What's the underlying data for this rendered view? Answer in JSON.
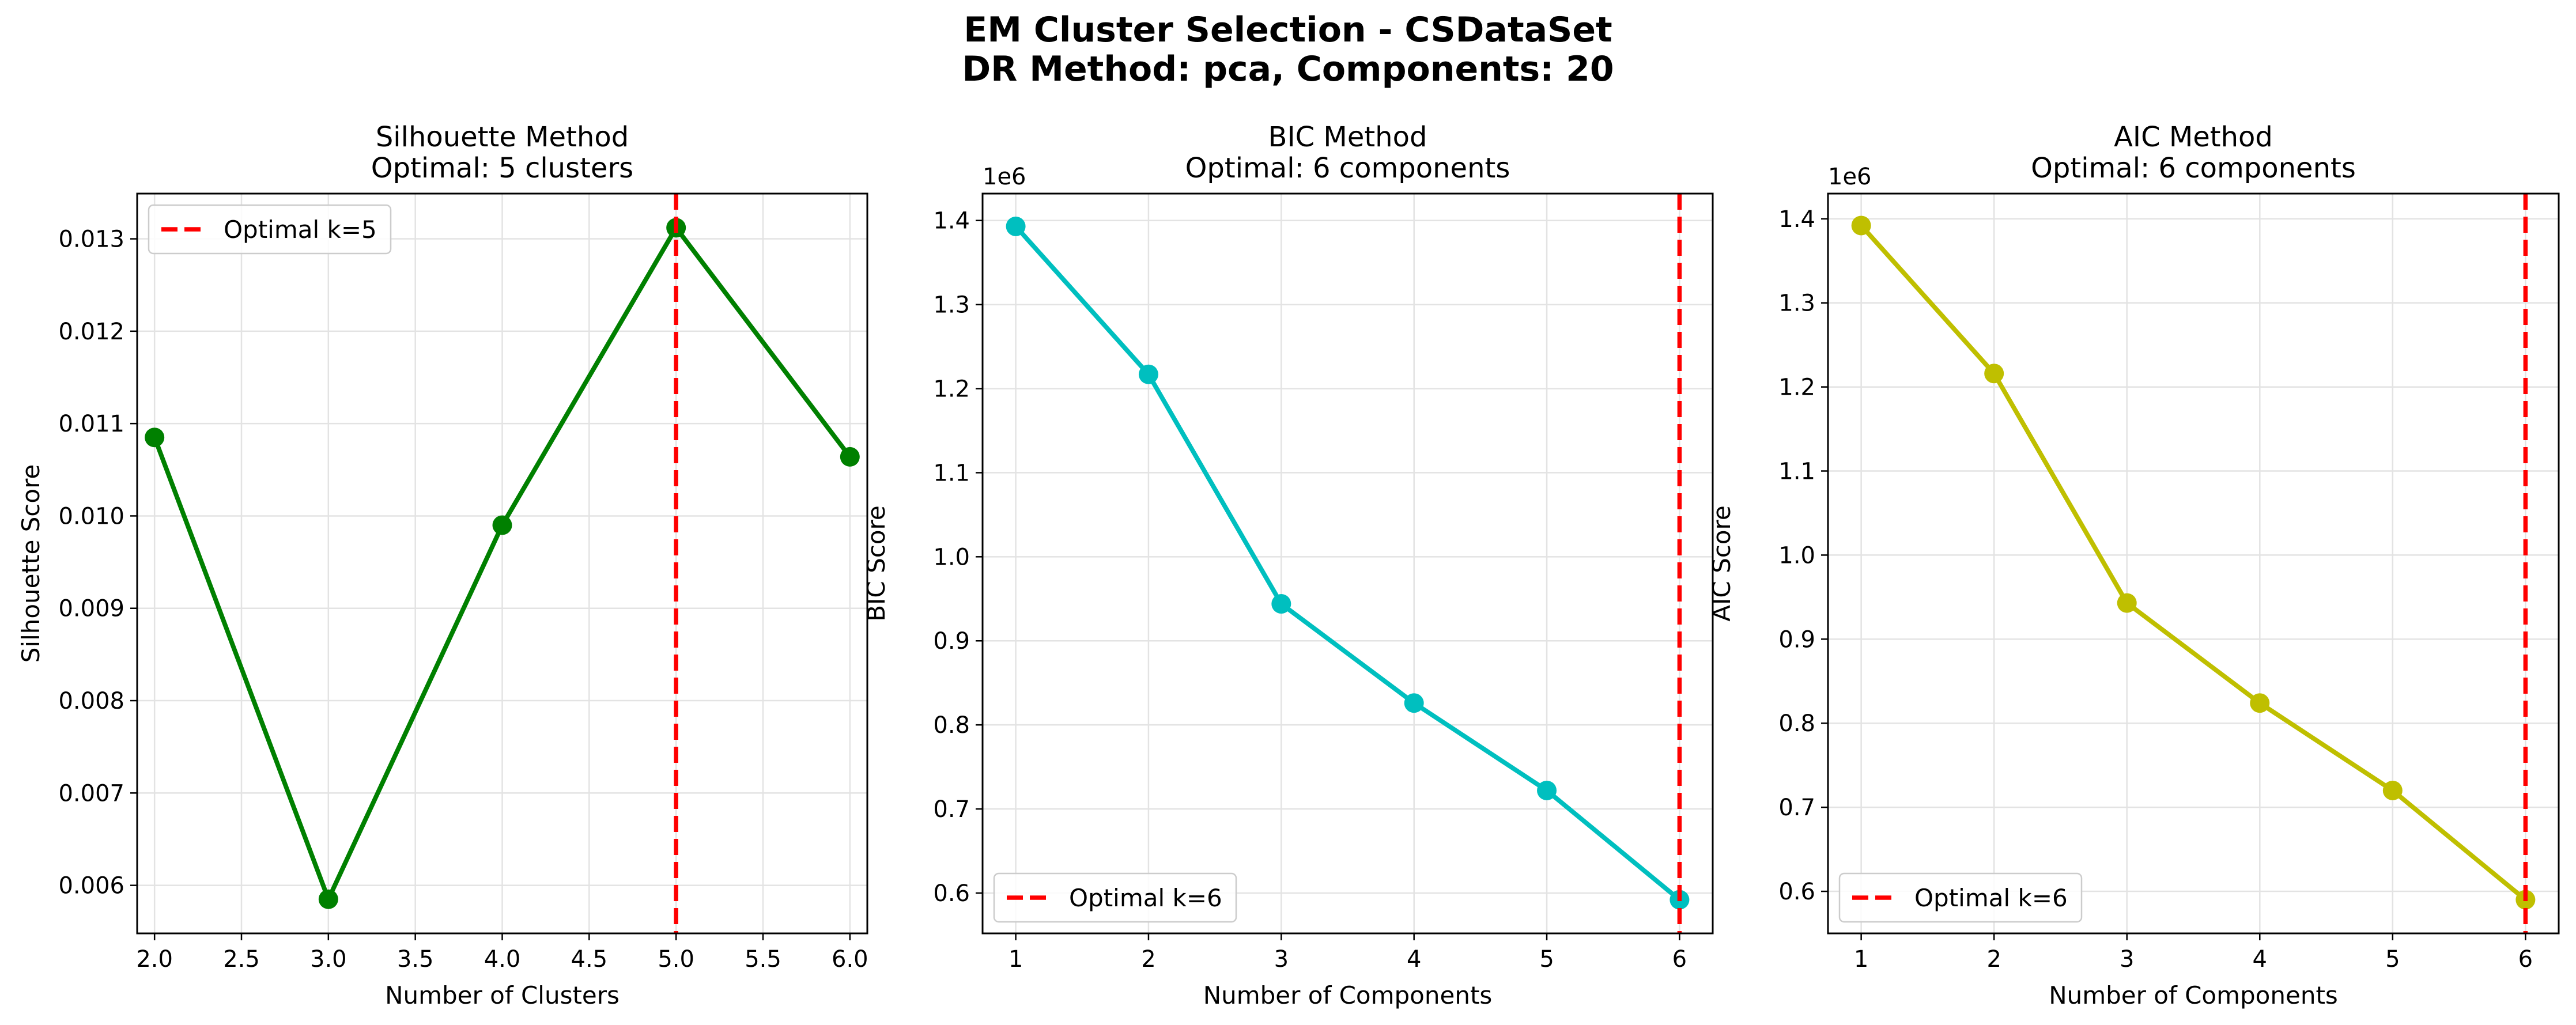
{
  "figure": {
    "title_line1": "EM Cluster Selection - CSDataSet",
    "title_line2": "DR Method: pca, Components: 20"
  },
  "chart_data": [
    {
      "type": "line",
      "title_line1": "Silhouette Method",
      "title_line2": "Optimal: 5 clusters",
      "xlabel": "Number of Clusters",
      "ylabel": "Silhouette Score",
      "x": [
        2.0,
        3.0,
        4.0,
        5.0,
        6.0
      ],
      "series": [
        {
          "values": [
            0.01085,
            0.00585,
            0.0099,
            0.01312,
            0.01064
          ],
          "color": "#008000"
        }
      ],
      "xlim": [
        1.9,
        6.1
      ],
      "ylim": [
        0.00548,
        0.01349
      ],
      "xticks": [
        2.0,
        2.5,
        3.0,
        3.5,
        4.0,
        4.5,
        5.0,
        5.5,
        6.0
      ],
      "xtick_labels": [
        "2.0",
        "2.5",
        "3.0",
        "3.5",
        "4.0",
        "4.5",
        "5.0",
        "5.5",
        "6.0"
      ],
      "yticks": [
        0.006,
        0.007,
        0.008,
        0.009,
        0.01,
        0.011,
        0.012,
        0.013
      ],
      "ytick_labels": [
        "0.006",
        "0.007",
        "0.008",
        "0.009",
        "0.010",
        "0.011",
        "0.012",
        "0.013"
      ],
      "offset_label": "",
      "optimal_x": 5.0,
      "optimal_color": "#ff0000",
      "legend": {
        "label": "Optimal k=5",
        "placement": "upper-left"
      },
      "grid": true
    },
    {
      "type": "line",
      "title_line1": "BIC Method",
      "title_line2": "Optimal: 6 components",
      "xlabel": "Number of Components",
      "ylabel": "BIC Score",
      "x": [
        1,
        2,
        3,
        4,
        5,
        6
      ],
      "series": [
        {
          "values": [
            1.393,
            1.217,
            0.944,
            0.826,
            0.722,
            0.592
          ],
          "color": "#00bfbf"
        }
      ],
      "xlim": [
        0.75,
        6.25
      ],
      "ylim": [
        0.552,
        1.432
      ],
      "xticks": [
        1,
        2,
        3,
        4,
        5,
        6
      ],
      "xtick_labels": [
        "1",
        "2",
        "3",
        "4",
        "5",
        "6"
      ],
      "yticks": [
        0.6,
        0.7,
        0.8,
        0.9,
        1.0,
        1.1,
        1.2,
        1.3,
        1.4
      ],
      "ytick_labels": [
        "0.6",
        "0.7",
        "0.8",
        "0.9",
        "1.0",
        "1.1",
        "1.2",
        "1.3",
        "1.4"
      ],
      "offset_label": "1e6",
      "optimal_x": 6,
      "optimal_color": "#ff0000",
      "legend": {
        "label": "Optimal k=6",
        "placement": "lower-left"
      },
      "grid": true
    },
    {
      "type": "line",
      "title_line1": "AIC Method",
      "title_line2": "Optimal: 6 components",
      "xlabel": "Number of Components",
      "ylabel": "AIC Score",
      "x": [
        1,
        2,
        3,
        4,
        5,
        6
      ],
      "series": [
        {
          "values": [
            1.392,
            1.216,
            0.943,
            0.824,
            0.72,
            0.59
          ],
          "color": "#bfbf00"
        }
      ],
      "xlim": [
        0.75,
        6.25
      ],
      "ylim": [
        0.55,
        1.43
      ],
      "xticks": [
        1,
        2,
        3,
        4,
        5,
        6
      ],
      "xtick_labels": [
        "1",
        "2",
        "3",
        "4",
        "5",
        "6"
      ],
      "yticks": [
        0.6,
        0.7,
        0.8,
        0.9,
        1.0,
        1.1,
        1.2,
        1.3,
        1.4
      ],
      "ytick_labels": [
        "0.6",
        "0.7",
        "0.8",
        "0.9",
        "1.0",
        "1.1",
        "1.2",
        "1.3",
        "1.4"
      ],
      "offset_label": "1e6",
      "optimal_x": 6,
      "optimal_color": "#ff0000",
      "legend": {
        "label": "Optimal k=6",
        "placement": "lower-left"
      },
      "grid": true
    }
  ]
}
